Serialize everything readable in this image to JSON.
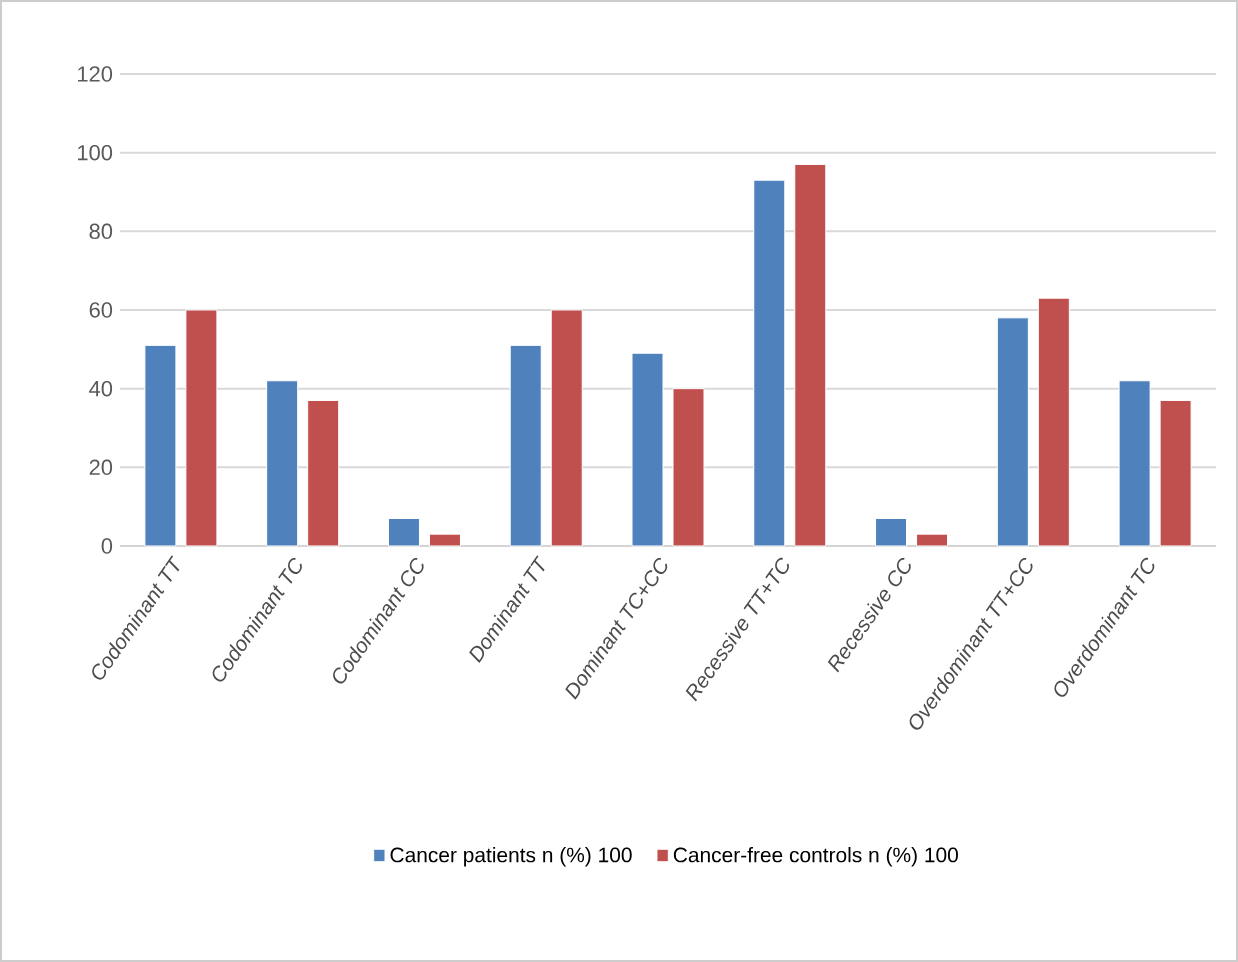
{
  "chart_data": {
    "type": "bar",
    "categories": [
      "Codominant TT",
      "Codominant TC",
      "Codominant CC",
      "Dominant TT",
      "Dominant TC+CC",
      "Recessive TT+TC",
      "Recessive CC",
      "Overdominant TT+CC",
      "Overdominant TC"
    ],
    "series": [
      {
        "name": "Cancer patients  n (%) 100",
        "color": "#4f81bd",
        "values": [
          51,
          42,
          7,
          51,
          49,
          93,
          7,
          58,
          42
        ]
      },
      {
        "name": "Cancer-free controls  n (%) 100",
        "color": "#c0504d",
        "values": [
          60,
          37,
          3,
          60,
          40,
          97,
          3,
          63,
          37
        ]
      }
    ],
    "ylim": [
      0,
      120
    ],
    "yticks": [
      0,
      20,
      40,
      60,
      80,
      100,
      120
    ],
    "grid": "y",
    "legend": "bottom"
  }
}
